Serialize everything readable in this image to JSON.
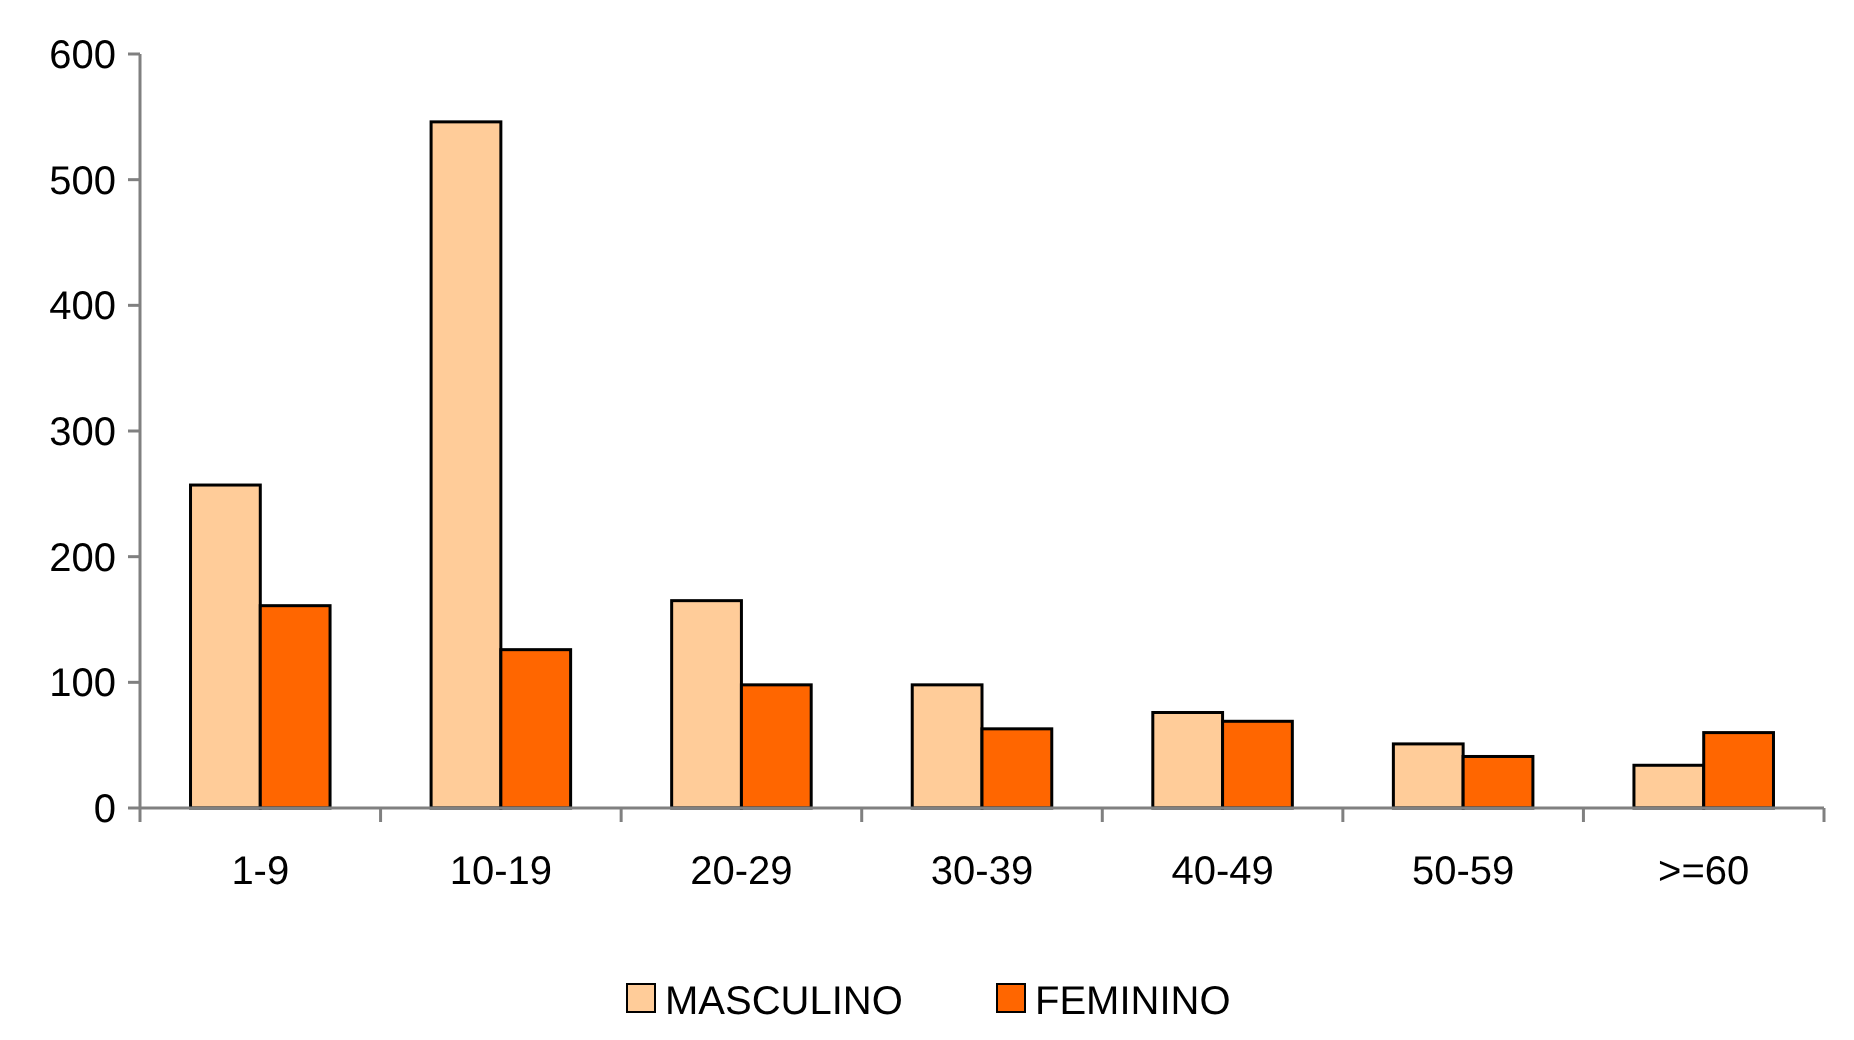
{
  "chart_data": {
    "type": "bar",
    "categories": [
      "1-9",
      "10-19",
      "20-29",
      "30-39",
      "40-49",
      "50-59",
      ">=60"
    ],
    "series": [
      {
        "name": "MASCULINO",
        "color": "#ffcc99",
        "values": [
          257,
          546,
          165,
          98,
          76,
          51,
          34
        ]
      },
      {
        "name": "FEMININO",
        "color": "#ff6600",
        "values": [
          161,
          126,
          98,
          63,
          69,
          41,
          60
        ]
      }
    ],
    "ylim": [
      0,
      600
    ],
    "yticks": [
      0,
      100,
      200,
      300,
      400,
      500,
      600
    ],
    "grid": false,
    "legend": "bottom"
  }
}
